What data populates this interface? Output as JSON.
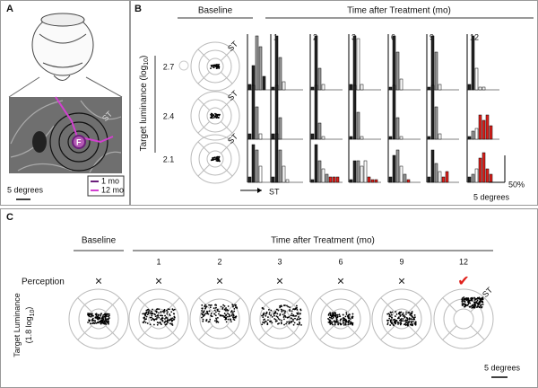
{
  "panel_a": {
    "label": "A",
    "st": "ST",
    "fovea": "F",
    "legend": [
      "1 mo",
      "12 mo"
    ],
    "legend_colors": [
      "#6a1f7a",
      "#d23fd0"
    ],
    "scale": "5 degrees"
  },
  "panel_b": {
    "label": "B",
    "baseline": "Baseline",
    "time_title": "Time after Treatment (mo)",
    "months": [
      "1",
      "2",
      "3",
      "6",
      "9",
      "12"
    ],
    "y_label": [
      "Target luminance (log",
      "10",
      ")"
    ],
    "luminances": [
      "2.7",
      "2.4",
      "2.1"
    ],
    "st": "ST",
    "scale_bar_value": 50,
    "scale_percent": "50%",
    "scale": "5 degrees",
    "histograms": [
      [
        {
          "values": [
            10,
            45,
            100,
            80,
            25
          ],
          "colors": [
            "#222",
            "#222",
            "#999",
            "#999",
            "#222"
          ]
        },
        {
          "values": [
            5,
            100,
            60,
            15
          ],
          "colors": [
            "#222",
            "#222",
            "#999",
            "#fff"
          ]
        },
        {
          "values": [
            5,
            100,
            40,
            10
          ],
          "colors": [
            "#222",
            "#222",
            "#999",
            "#fff"
          ]
        },
        {
          "values": [
            10,
            100,
            95,
            10
          ],
          "colors": [
            "#222",
            "#222",
            "#fff",
            "#fff"
          ]
        },
        {
          "values": [
            5,
            100,
            70,
            20
          ],
          "colors": [
            "#222",
            "#222",
            "#999",
            "#fff"
          ]
        },
        {
          "values": [
            5,
            100,
            70,
            10
          ],
          "colors": [
            "#222",
            "#222",
            "#999",
            "#fff"
          ]
        },
        {
          "values": [
            10,
            100,
            40,
            5,
            5
          ],
          "colors": [
            "#222",
            "#222",
            "#fff",
            "#fff",
            "#fff"
          ]
        }
      ],
      [
        {
          "values": [
            10,
            100,
            60,
            10
          ],
          "colors": [
            "#222",
            "#222",
            "#999",
            "#fff"
          ]
        },
        {
          "values": [
            10,
            100,
            40
          ],
          "colors": [
            "#222",
            "#222",
            "#999"
          ]
        },
        {
          "values": [
            10,
            100,
            30,
            5
          ],
          "colors": [
            "#222",
            "#222",
            "#999",
            "#fff"
          ]
        },
        {
          "values": [
            5,
            100,
            50,
            5
          ],
          "colors": [
            "#222",
            "#222",
            "#999",
            "#fff"
          ]
        },
        {
          "values": [
            5,
            100,
            40,
            5
          ],
          "colors": [
            "#222",
            "#222",
            "#999",
            "#fff"
          ]
        },
        {
          "values": [
            5,
            100,
            60,
            10
          ],
          "colors": [
            "#222",
            "#222",
            "#999",
            "#fff"
          ]
        },
        {
          "values": [
            5,
            15,
            20,
            45,
            35,
            45,
            25
          ],
          "colors": [
            "#222",
            "#999",
            "#fff",
            "#e0201b",
            "#e0201b",
            "#e0201b",
            "#e0201b"
          ]
        }
      ],
      [
        {
          "values": [
            10,
            70,
            60,
            30
          ],
          "colors": [
            "#222",
            "#222",
            "#999",
            "#fff"
          ]
        },
        {
          "values": [
            10,
            90,
            60,
            30,
            5
          ],
          "colors": [
            "#222",
            "#222",
            "#999",
            "#fff",
            "#fff"
          ]
        },
        {
          "values": [
            5,
            70,
            40,
            25,
            15,
            10,
            10,
            10
          ],
          "colors": [
            "#222",
            "#222",
            "#999",
            "#fff",
            "#999",
            "#e0201b",
            "#e0201b",
            "#e0201b"
          ]
        },
        {
          "values": [
            5,
            40,
            40,
            30,
            40,
            10,
            5,
            5
          ],
          "colors": [
            "#222",
            "#222",
            "#999",
            "#fff",
            "#fff",
            "#e0201b",
            "#e0201b",
            "#e0201b"
          ]
        },
        {
          "values": [
            10,
            50,
            60,
            30,
            15,
            5
          ],
          "colors": [
            "#222",
            "#222",
            "#999",
            "#fff",
            "#999",
            "#e0201b"
          ]
        },
        {
          "values": [
            10,
            60,
            35,
            20,
            10,
            20
          ],
          "colors": [
            "#222",
            "#222",
            "#999",
            "#fff",
            "#e0201b",
            "#e0201b"
          ]
        },
        {
          "values": [
            10,
            15,
            25,
            45,
            55,
            25,
            15
          ],
          "colors": [
            "#222",
            "#999",
            "#fff",
            "#e0201b",
            "#e0201b",
            "#e0201b",
            "#e0201b"
          ]
        }
      ]
    ]
  },
  "panel_c": {
    "label": "C",
    "baseline": "Baseline",
    "time_title": "Time after Treatment (mo)",
    "months": [
      "1",
      "2",
      "3",
      "6",
      "9",
      "12"
    ],
    "perception": "Perception",
    "perceived": [
      "×",
      "×",
      "×",
      "×",
      "×",
      "×",
      "✔"
    ],
    "perceived_colors": [
      "#111",
      "#111",
      "#111",
      "#111",
      "#111",
      "#111",
      "#e0201b"
    ],
    "y_label": [
      "Target Luminance",
      "(1.8 log",
      "10",
      ")"
    ],
    "st": "ST",
    "scale": "5 degrees"
  }
}
